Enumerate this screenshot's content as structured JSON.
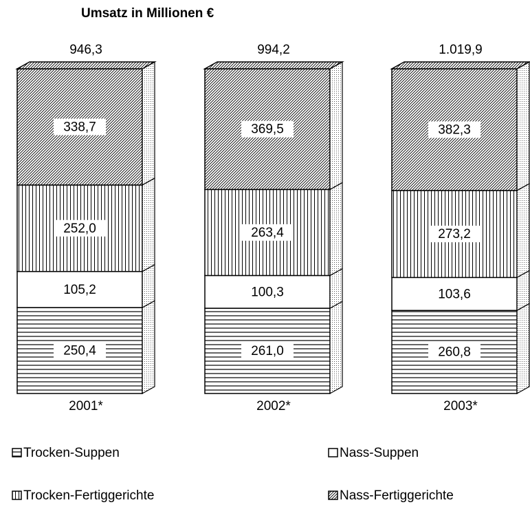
{
  "chart_data": {
    "type": "stacked-bar-3d",
    "stacking": "percent",
    "title": "Umsatz in Millionen €",
    "categories": [
      "2001*",
      "2002*",
      "2003*"
    ],
    "totals": {
      "values": [
        946.3,
        994.2,
        1019.9
      ],
      "value_labels": [
        "946,3",
        "994,2",
        "1.019,9"
      ]
    },
    "series": [
      {
        "name": "Trocken-Suppen",
        "pattern": "horizontal",
        "values": [
          250.4,
          261.0,
          260.8
        ],
        "value_labels": [
          "250,4",
          "261,0",
          "260,8"
        ]
      },
      {
        "name": "Nass-Suppen",
        "pattern": "solid",
        "values": [
          105.2,
          100.3,
          103.6
        ],
        "value_labels": [
          "105,2",
          "100,3",
          "103,6"
        ]
      },
      {
        "name": "Trocken-Fertiggerichte",
        "pattern": "vertical",
        "values": [
          252.0,
          263.4,
          273.2
        ],
        "value_labels": [
          "252,0",
          "263,4",
          "273,2"
        ]
      },
      {
        "name": "Nass-Fertiggerichte",
        "pattern": "diagonal",
        "values": [
          338.7,
          369.5,
          382.3
        ],
        "value_labels": [
          "338,7",
          "369,5",
          "382,3"
        ]
      }
    ],
    "legend": "bottom"
  }
}
